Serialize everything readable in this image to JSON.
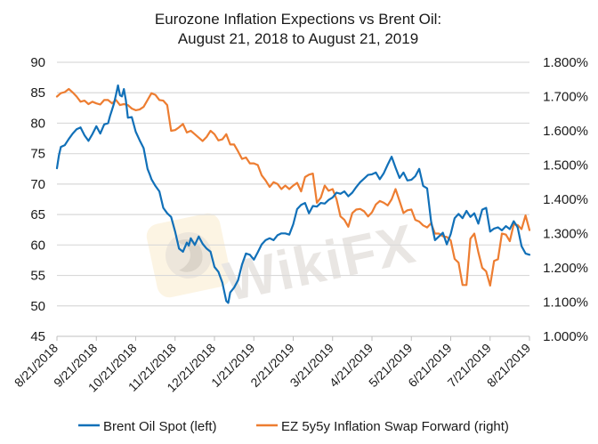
{
  "chart_data": {
    "type": "line",
    "title": "Eurozone Inflation Expections vs Brent Oil:",
    "subtitle": "August 21, 2018 to August 21, 2019",
    "xlabel": "",
    "ylabel_left": "",
    "ylabel_right": "",
    "grid": true,
    "legend_position": "bottom",
    "watermark": "WikiFX",
    "x_ticks": [
      "8/21/2018",
      "9/21/2018",
      "10/21/2018",
      "11/21/2018",
      "12/21/2018",
      "1/21/2019",
      "2/21/2019",
      "3/21/2019",
      "4/21/2019",
      "5/21/2019",
      "6/21/2019",
      "7/21/2019",
      "8/21/2019"
    ],
    "x_range": [
      "2018-08-21",
      "2019-08-21"
    ],
    "y_left": {
      "min": 45,
      "max": 90,
      "step": 5,
      "ticks": [
        "90",
        "85",
        "80",
        "75",
        "70",
        "65",
        "60",
        "55",
        "50",
        "45"
      ]
    },
    "y_right": {
      "min": 1.0,
      "max": 1.8,
      "step": 0.1,
      "ticks": [
        "1.800%",
        "1.700%",
        "1.600%",
        "1.500%",
        "1.400%",
        "1.300%",
        "1.200%",
        "1.100%",
        "1.000%"
      ]
    },
    "series": [
      {
        "name": "Brent Oil Spot (left)",
        "axis": "left",
        "color": "#1170b8",
        "x_months": [
          0,
          0.05,
          0.1,
          0.2,
          0.3,
          0.4,
          0.5,
          0.6,
          0.7,
          0.8,
          0.9,
          1.0,
          1.05,
          1.1,
          1.2,
          1.3,
          1.35,
          1.4,
          1.45,
          1.5,
          1.55,
          1.6,
          1.65,
          1.7,
          1.75,
          1.8,
          1.9,
          2.0,
          2.1,
          2.2,
          2.3,
          2.35,
          2.4,
          2.5,
          2.6,
          2.7,
          2.8,
          2.9,
          3.0,
          3.1,
          3.2,
          3.3,
          3.35,
          3.4,
          3.5,
          3.6,
          3.7,
          3.8,
          3.9,
          4.0,
          4.1,
          4.2,
          4.3,
          4.35,
          4.4,
          4.5,
          4.6,
          4.7,
          4.8,
          4.9,
          5.0,
          5.1,
          5.2,
          5.3,
          5.4,
          5.5,
          5.6,
          5.7,
          5.8,
          5.9,
          6.0,
          6.1,
          6.2,
          6.3,
          6.4,
          6.5,
          6.6,
          6.7,
          6.8,
          6.9,
          7.0,
          7.1,
          7.2,
          7.3,
          7.4,
          7.5,
          7.6,
          7.7,
          7.8,
          7.9,
          8.0,
          8.1,
          8.2,
          8.3,
          8.4,
          8.5,
          8.6,
          8.7,
          8.8,
          8.9,
          9.0,
          9.1,
          9.2,
          9.3,
          9.4,
          9.5,
          9.6,
          9.7,
          9.8,
          9.9,
          10.0,
          10.1,
          10.2,
          10.3,
          10.4,
          10.5,
          10.6,
          10.7,
          10.8,
          10.9,
          11.0,
          11.1,
          11.2,
          11.3,
          11.4,
          11.5,
          11.6,
          11.7,
          11.8,
          11.9,
          12.0
        ],
        "values": [
          72.6,
          74.7,
          76.1,
          76.4,
          77.4,
          78.3,
          79.0,
          79.3,
          78.0,
          77.1,
          78.2,
          79.5,
          78.9,
          78.3,
          79.8,
          80.0,
          81.2,
          82.2,
          83.3,
          84.7,
          86.2,
          84.6,
          84.4,
          85.6,
          83.8,
          80.9,
          81.0,
          78.6,
          77.2,
          75.9,
          72.5,
          71.7,
          70.8,
          69.7,
          68.8,
          66.1,
          65.2,
          64.6,
          62.2,
          59.4,
          58.9,
          60.4,
          59.9,
          61.1,
          60.0,
          61.4,
          60.2,
          59.4,
          58.9,
          56.4,
          55.6,
          53.8,
          50.8,
          50.5,
          52.2,
          53.0,
          54.2,
          56.8,
          58.6,
          58.4,
          57.6,
          58.8,
          60.1,
          60.8,
          61.1,
          60.8,
          61.6,
          61.9,
          61.9,
          61.7,
          63.4,
          65.9,
          66.6,
          66.9,
          65.2,
          66.4,
          66.3,
          66.9,
          66.8,
          67.4,
          67.8,
          68.6,
          68.4,
          68.8,
          68.0,
          68.6,
          69.5,
          70.3,
          70.9,
          71.5,
          71.6,
          71.9,
          70.8,
          71.8,
          73.2,
          74.5,
          72.7,
          71.0,
          71.9,
          70.6,
          70.7,
          71.3,
          72.5,
          69.7,
          69.3,
          63.9,
          60.8,
          61.4,
          62.0,
          60.1,
          61.8,
          64.4,
          65.1,
          64.4,
          65.6,
          64.6,
          65.2,
          63.5,
          65.8,
          66.1,
          62.2,
          62.7,
          62.9,
          62.4,
          63.1,
          62.6,
          63.9,
          62.9,
          59.8,
          58.6,
          58.4,
          58.9,
          59.4,
          61.1
        ]
      },
      {
        "name": "EZ 5y5y Inflation Swap Forward (right)",
        "axis": "right",
        "color": "#ed7d31",
        "x_months": [
          0,
          0.1,
          0.2,
          0.3,
          0.4,
          0.5,
          0.6,
          0.7,
          0.8,
          0.9,
          1.0,
          1.1,
          1.2,
          1.3,
          1.4,
          1.5,
          1.6,
          1.7,
          1.8,
          1.9,
          2.0,
          2.1,
          2.2,
          2.3,
          2.4,
          2.5,
          2.6,
          2.7,
          2.8,
          2.9,
          3.0,
          3.1,
          3.2,
          3.3,
          3.4,
          3.5,
          3.6,
          3.7,
          3.8,
          3.9,
          4.0,
          4.1,
          4.2,
          4.3,
          4.4,
          4.5,
          4.6,
          4.7,
          4.8,
          4.9,
          5.0,
          5.1,
          5.2,
          5.3,
          5.4,
          5.5,
          5.6,
          5.7,
          5.8,
          5.9,
          6.0,
          6.1,
          6.2,
          6.3,
          6.4,
          6.5,
          6.6,
          6.7,
          6.8,
          6.9,
          7.0,
          7.1,
          7.2,
          7.3,
          7.4,
          7.5,
          7.6,
          7.7,
          7.8,
          7.9,
          8.0,
          8.1,
          8.2,
          8.3,
          8.4,
          8.5,
          8.6,
          8.7,
          8.8,
          8.9,
          9.0,
          9.1,
          9.2,
          9.3,
          9.4,
          9.5,
          9.6,
          9.7,
          9.8,
          9.9,
          10.0,
          10.1,
          10.2,
          10.3,
          10.4,
          10.5,
          10.6,
          10.7,
          10.8,
          10.9,
          11.0,
          11.1,
          11.2,
          11.3,
          11.4,
          11.5,
          11.6,
          11.7,
          11.8,
          11.9,
          12.0
        ],
        "values": [
          1.7,
          1.71,
          1.713,
          1.722,
          1.712,
          1.7,
          1.685,
          1.688,
          1.678,
          1.685,
          1.68,
          1.677,
          1.69,
          1.69,
          1.68,
          1.69,
          1.675,
          1.678,
          1.675,
          1.665,
          1.66,
          1.662,
          1.67,
          1.69,
          1.71,
          1.705,
          1.69,
          1.688,
          1.675,
          1.6,
          1.602,
          1.61,
          1.62,
          1.595,
          1.6,
          1.59,
          1.58,
          1.57,
          1.582,
          1.6,
          1.59,
          1.572,
          1.575,
          1.59,
          1.56,
          1.56,
          1.54,
          1.518,
          1.522,
          1.505,
          1.505,
          1.5,
          1.47,
          1.455,
          1.436,
          1.45,
          1.445,
          1.43,
          1.44,
          1.43,
          1.44,
          1.448,
          1.423,
          1.465,
          1.472,
          1.475,
          1.39,
          1.405,
          1.44,
          1.425,
          1.43,
          1.4,
          1.35,
          1.34,
          1.32,
          1.36,
          1.37,
          1.372,
          1.365,
          1.35,
          1.362,
          1.385,
          1.395,
          1.39,
          1.382,
          1.4,
          1.43,
          1.395,
          1.36,
          1.368,
          1.37,
          1.34,
          1.335,
          1.324,
          1.318,
          1.33,
          1.3,
          1.3,
          1.292,
          1.29,
          1.28,
          1.226,
          1.215,
          1.15,
          1.15,
          1.285,
          1.3,
          1.246,
          1.2,
          1.19,
          1.148,
          1.22,
          1.225,
          1.3,
          1.297,
          1.278,
          1.327,
          1.325,
          1.313,
          1.353,
          1.31,
          1.303,
          1.238,
          1.224,
          1.29,
          1.28,
          1.27,
          1.227,
          1.25
        ]
      }
    ]
  }
}
